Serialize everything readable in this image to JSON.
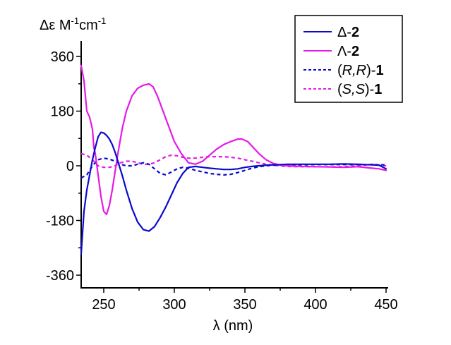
{
  "chart_data": {
    "type": "line",
    "title": "",
    "xlabel": "λ (nm)",
    "ylabel": "Δε M⁻¹cm⁻¹",
    "ylabel_parts": {
      "base": "Δε M",
      "sup1": "-1",
      "mid": "cm",
      "sup2": "-1"
    },
    "xlim": [
      234,
      451
    ],
    "ylim": [
      -400,
      400
    ],
    "xticks": [
      250,
      300,
      350,
      400,
      450
    ],
    "xticks_minor": [
      275,
      325,
      375,
      425
    ],
    "yticks": [
      360,
      180,
      0,
      -180,
      -360
    ],
    "yticks_minor": [
      270,
      90,
      -90,
      -270
    ],
    "grid": false,
    "legend_position": "top-right",
    "series": [
      {
        "name": "Δ-2",
        "legend_prefix": "Δ-",
        "legend_bold": "2",
        "color": "#0a0acc",
        "style": "solid",
        "x": [
          234,
          236,
          238,
          240,
          242,
          244,
          246,
          248,
          250,
          252,
          254,
          256,
          258,
          260,
          263,
          266,
          270,
          274,
          278,
          282,
          286,
          290,
          294,
          298,
          302,
          306,
          310,
          315,
          320,
          325,
          330,
          335,
          340,
          345,
          350,
          355,
          360,
          365,
          370,
          375,
          380,
          390,
          400,
          410,
          420,
          430,
          440,
          445,
          448,
          450
        ],
        "y": [
          -290,
          -150,
          -80,
          -30,
          20,
          60,
          95,
          110,
          108,
          100,
          88,
          70,
          45,
          15,
          -30,
          -80,
          -140,
          -185,
          -210,
          -215,
          -200,
          -170,
          -135,
          -95,
          -55,
          -25,
          -5,
          -2,
          -5,
          -8,
          -10,
          -12,
          -12,
          -10,
          -5,
          -2,
          0,
          2,
          3,
          4,
          5,
          5,
          5,
          5,
          6,
          5,
          3,
          2,
          -5,
          -10
        ]
      },
      {
        "name": "Λ-2",
        "legend_prefix": "Λ-",
        "legend_bold": "2",
        "color": "#e619e6",
        "style": "solid",
        "x": [
          234,
          236,
          238,
          240,
          242,
          243,
          244,
          246,
          248,
          250,
          252,
          254,
          256,
          258,
          260,
          263,
          266,
          270,
          274,
          278,
          282,
          285,
          288,
          292,
          296,
          300,
          305,
          310,
          315,
          320,
          325,
          330,
          335,
          340,
          345,
          348,
          352,
          356,
          360,
          365,
          370,
          375,
          380,
          390,
          400,
          410,
          420,
          430,
          440,
          445,
          450
        ],
        "y": [
          330,
          280,
          180,
          160,
          120,
          60,
          40,
          -30,
          -100,
          -150,
          -160,
          -130,
          -80,
          -20,
          40,
          120,
          180,
          230,
          255,
          265,
          270,
          260,
          230,
          180,
          130,
          80,
          40,
          10,
          5,
          15,
          35,
          55,
          70,
          80,
          88,
          88,
          80,
          60,
          40,
          20,
          8,
          2,
          0,
          -2,
          -3,
          -4,
          -5,
          -3,
          -8,
          -10,
          -15
        ]
      },
      {
        "name": "(R,R)-1",
        "legend_prefix_italic": "R,R",
        "legend_bold": "1",
        "color": "#0a0acc",
        "style": "dashed",
        "x": [
          234,
          238,
          242,
          246,
          250,
          254,
          258,
          262,
          266,
          270,
          274,
          278,
          282,
          286,
          290,
          294,
          298,
          302,
          306,
          310,
          315,
          320,
          325,
          330,
          335,
          340,
          345,
          350,
          355,
          360,
          365,
          370,
          375,
          380,
          390,
          400,
          410,
          420,
          430,
          440,
          450
        ],
        "y": [
          -40,
          -30,
          0,
          20,
          25,
          22,
          15,
          5,
          0,
          0,
          5,
          10,
          5,
          -10,
          -25,
          -30,
          -20,
          -10,
          -5,
          -8,
          -15,
          -20,
          -25,
          -28,
          -30,
          -28,
          -22,
          -15,
          -8,
          -3,
          0,
          2,
          3,
          3,
          3,
          4,
          4,
          4,
          4,
          4,
          3
        ]
      },
      {
        "name": "(S,S)-1",
        "legend_prefix_italic": "S,S",
        "legend_bold": "1",
        "color": "#e619e6",
        "style": "dashed",
        "x": [
          234,
          238,
          242,
          246,
          250,
          254,
          258,
          262,
          266,
          270,
          274,
          278,
          282,
          286,
          290,
          294,
          298,
          302,
          306,
          310,
          315,
          320,
          325,
          330,
          335,
          340,
          345,
          350,
          355,
          360,
          365,
          370,
          375,
          380,
          390,
          400,
          410,
          420,
          430,
          440,
          450
        ],
        "y": [
          40,
          35,
          20,
          0,
          -5,
          -5,
          0,
          10,
          15,
          15,
          10,
          5,
          5,
          10,
          20,
          30,
          35,
          33,
          28,
          25,
          25,
          28,
          30,
          30,
          30,
          28,
          25,
          20,
          15,
          10,
          5,
          2,
          0,
          -2,
          -3,
          -3,
          -3,
          -3,
          0,
          5,
          0
        ]
      }
    ]
  }
}
